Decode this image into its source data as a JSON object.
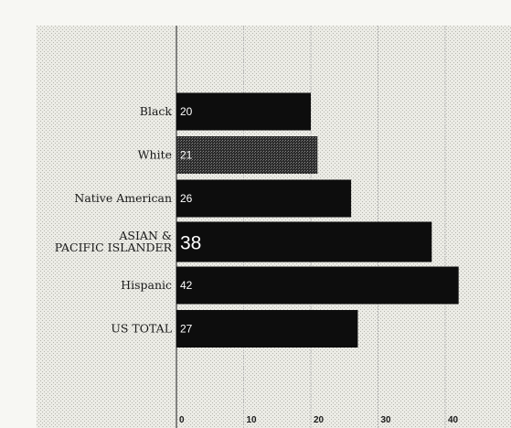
{
  "chart_data": {
    "type": "bar",
    "orientation": "horizontal",
    "categories": [
      [
        "Black"
      ],
      [
        "White"
      ],
      [
        "Native American"
      ],
      [
        "ASIAN &",
        "PACIFIC ISLANDER"
      ],
      [
        "Hispanic"
      ],
      [
        "US TOTAL"
      ]
    ],
    "values": [
      20,
      21,
      26,
      38,
      42,
      27
    ],
    "value_labels": [
      "20",
      "21",
      "26",
      "38",
      "42",
      "27"
    ],
    "xlim": [
      0,
      45
    ],
    "xticks": [
      0,
      10,
      20,
      30,
      40
    ],
    "xtick_labels": [
      "0",
      "10",
      "20",
      "30",
      "40"
    ],
    "grid": "vertical",
    "title": "",
    "xlabel": "",
    "ylabel": "",
    "colors": {
      "bar": "#0d0d0d",
      "highlight_bar": "#3a3a3a",
      "grid": "#b8b8b8",
      "axis": "#555555",
      "background": "#e4e4dc"
    },
    "highlight_index": 1,
    "emphasized_index": 3
  }
}
